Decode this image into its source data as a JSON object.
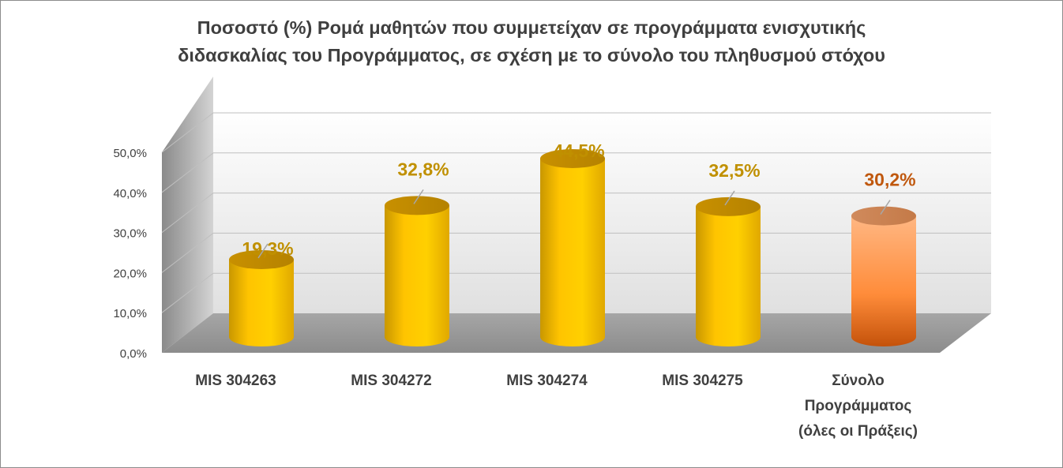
{
  "chart_data": {
    "type": "bar",
    "style": "3d-cylinder",
    "title_lines": [
      "Ποσοστό (%) Ρομά μαθητών που συμμετείχαν σε προγράμματα ενισχυτικής",
      "διδασκαλίας του Προγράμματος, σε σχέση με το σύνολο του πληθυσμού στόχου"
    ],
    "categories": [
      [
        "MIS 304263"
      ],
      [
        "MIS 304272"
      ],
      [
        "MIS 304274"
      ],
      [
        "MIS 304275"
      ],
      [
        "Σύνολο",
        "Προγράμματος",
        "(όλες οι Πράξεις)"
      ]
    ],
    "values": [
      19.3,
      32.8,
      44.5,
      32.5,
      30.2
    ],
    "value_labels": [
      "19,3%",
      "32,8%",
      "44,5%",
      "32,5%",
      "30,2%"
    ],
    "y_ticks": [
      "0,0%",
      "10,0%",
      "20,0%",
      "30,0%",
      "40,0%",
      "50,0%"
    ],
    "ylim": [
      0,
      50
    ],
    "grid": true,
    "legend": "none",
    "colors": {
      "bar": "#ffc000",
      "total_bar": "#f79646",
      "label": "#c09000",
      "total_label": "#c0580e"
    },
    "highlight_index": 4
  }
}
